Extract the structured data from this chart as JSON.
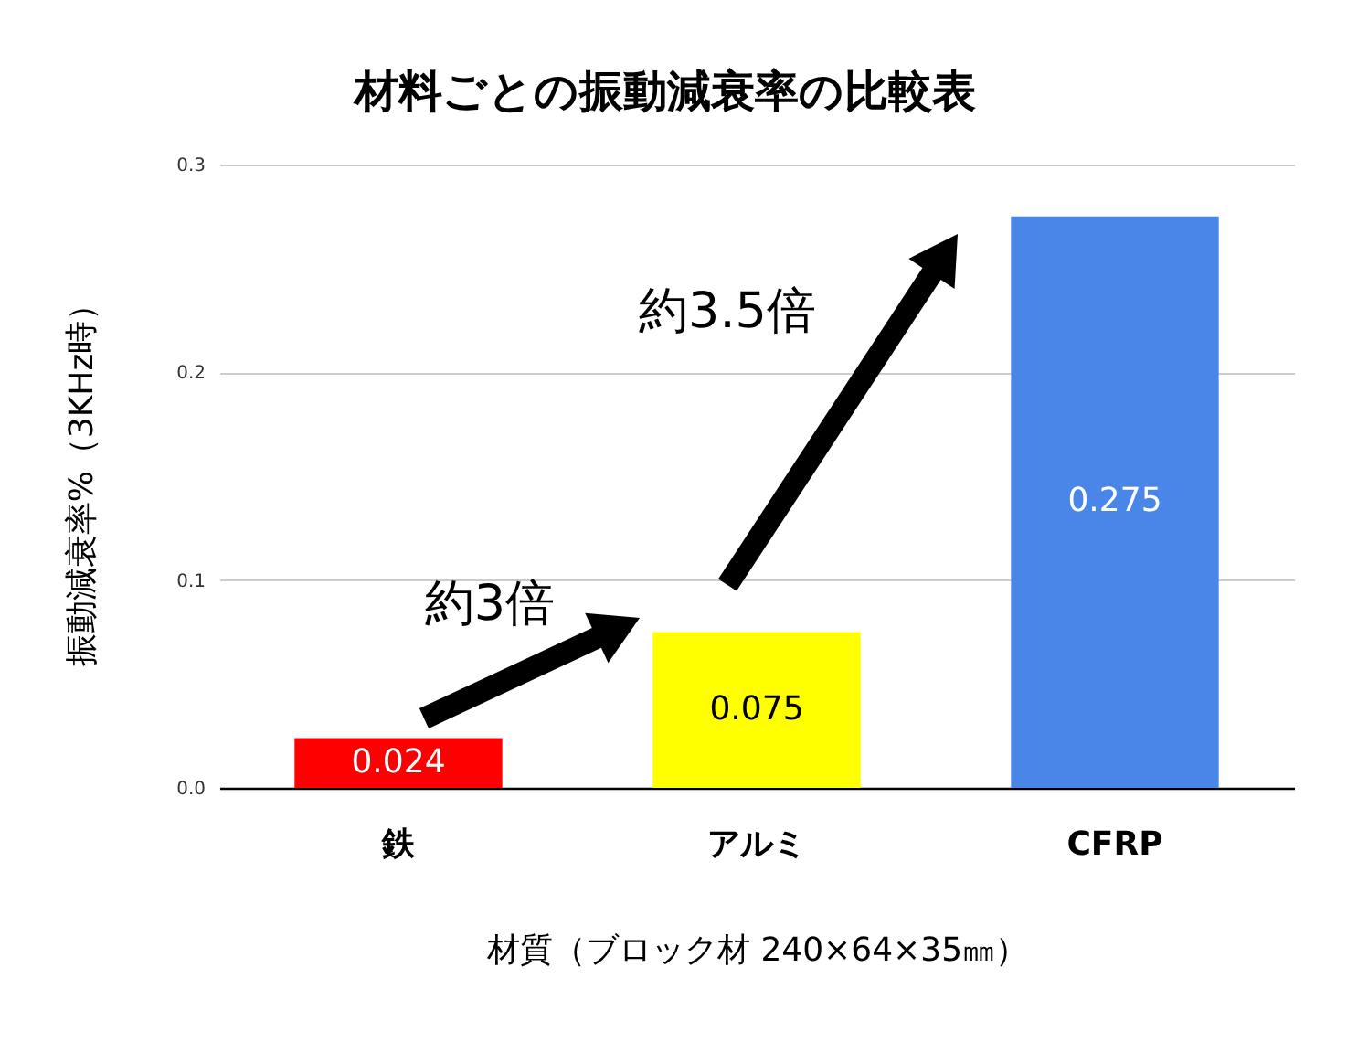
{
  "chart_data": {
    "type": "bar",
    "title": "材料ごとの振動減衰率の比較表",
    "xlabel": "材質（ブロック材 240×64×35㎜）",
    "ylabel": "振動減衰率%（3KHz時）",
    "categories": [
      "鉄",
      "アルミ",
      "CFRP"
    ],
    "values": [
      0.024,
      0.075,
      0.275
    ],
    "colors": [
      "#ff0000",
      "#ffff00",
      "#4a86e8"
    ],
    "ylim": [
      0,
      0.3
    ],
    "yticks": [
      {
        "value": 0,
        "label": "0.0"
      },
      {
        "value": 0.1,
        "label": "0.1"
      },
      {
        "value": 0.2,
        "label": "0.2"
      },
      {
        "value": 0.3,
        "label": "0.3"
      }
    ],
    "grid": "y",
    "data_labels": true,
    "annotations": [
      "約3倍",
      "約3.5倍"
    ]
  }
}
